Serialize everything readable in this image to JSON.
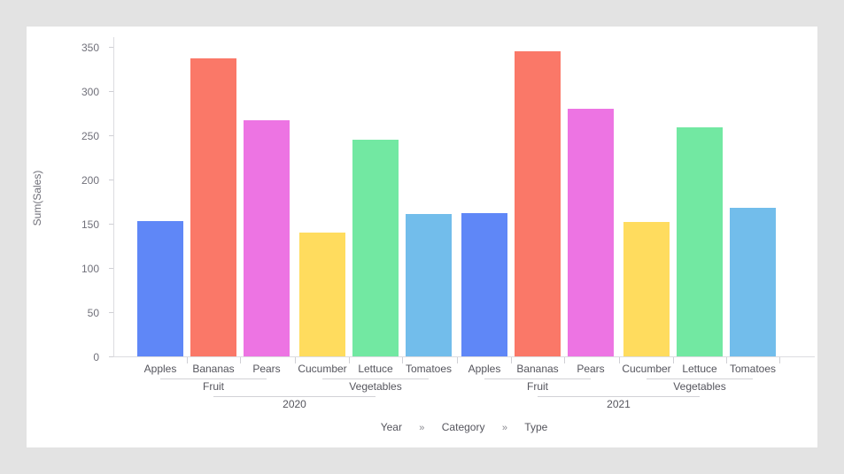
{
  "colors": {
    "background": "#e3e3e3",
    "card": "#ffffff",
    "axis_line": "#dcdce0",
    "tick_label": "#70707a",
    "label": "#55555d",
    "bracket_line": "#d2d2d6"
  },
  "breadcrumb": {
    "items": [
      "Year",
      "Category",
      "Type"
    ],
    "separator": "»"
  },
  "chart_data": {
    "type": "bar",
    "title": "",
    "ylabel": "Sum(Sales)",
    "xlabel": "",
    "ylim": [
      0,
      350
    ],
    "yticks": [
      0,
      50,
      100,
      150,
      200,
      250,
      300,
      350
    ],
    "grid": false,
    "legend_position": "bottom-breadcrumb",
    "x_hierarchy": [
      "Year",
      "Category",
      "Type"
    ],
    "palette": {
      "Apples": "#5f87f7",
      "Bananas": "#fa7868",
      "Pears": "#ed74e3",
      "Cucumber": "#ffdc5e",
      "Lettuce": "#72e8a2",
      "Tomatoes": "#72bdeb"
    },
    "groups": [
      {
        "year": "2020",
        "categories": [
          {
            "name": "Fruit",
            "types": [
              {
                "label": "Apples",
                "value": 153,
                "color": "#5f87f7"
              },
              {
                "label": "Bananas",
                "value": 337,
                "color": "#fa7868"
              },
              {
                "label": "Pears",
                "value": 267,
                "color": "#ed74e3"
              }
            ]
          },
          {
            "name": "Vegetables",
            "types": [
              {
                "label": "Cucumber",
                "value": 140,
                "color": "#ffdc5e"
              },
              {
                "label": "Lettuce",
                "value": 245,
                "color": "#72e8a2"
              },
              {
                "label": "Tomatoes",
                "value": 161,
                "color": "#72bdeb"
              }
            ]
          }
        ]
      },
      {
        "year": "2021",
        "categories": [
          {
            "name": "Fruit",
            "types": [
              {
                "label": "Apples",
                "value": 162,
                "color": "#5f87f7"
              },
              {
                "label": "Bananas",
                "value": 345,
                "color": "#fa7868"
              },
              {
                "label": "Pears",
                "value": 280,
                "color": "#ed74e3"
              }
            ]
          },
          {
            "name": "Vegetables",
            "types": [
              {
                "label": "Cucumber",
                "value": 152,
                "color": "#ffdc5e"
              },
              {
                "label": "Lettuce",
                "value": 259,
                "color": "#72e8a2"
              },
              {
                "label": "Tomatoes",
                "value": 168,
                "color": "#72bdeb"
              }
            ]
          }
        ]
      }
    ]
  }
}
